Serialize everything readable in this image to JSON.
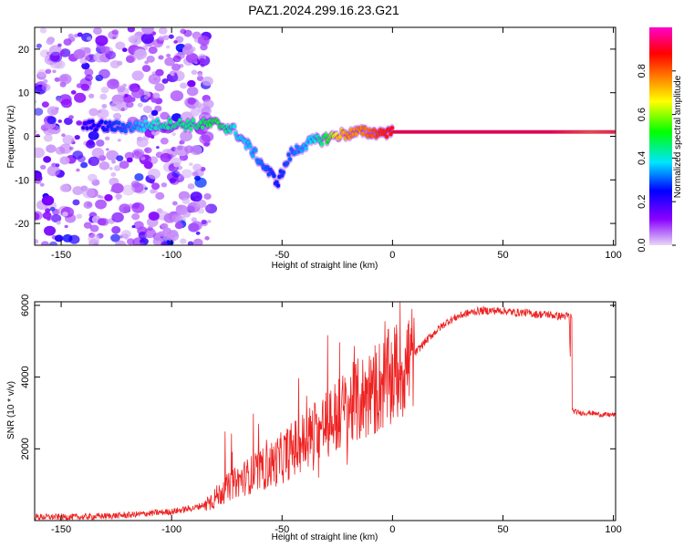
{
  "title": "PAZ1.2024.299.16.23.G21",
  "chart_data": [
    {
      "type": "heatmap",
      "xlabel": "Height of straight line (km)",
      "ylabel": "Frequency (Hz)",
      "xlim": [
        -162,
        101
      ],
      "ylim": [
        -25,
        25
      ],
      "xticks": [
        -150,
        -100,
        -50,
        0,
        50,
        100
      ],
      "yticks": [
        -20,
        -10,
        0,
        10,
        20
      ],
      "colorbar": {
        "label": "Normalized spectral amplitude",
        "range": [
          0,
          1
        ],
        "ticks": [
          0.0,
          0.2,
          0.4,
          0.6,
          0.8
        ],
        "colormap": [
          "#e6d9f5",
          "#8a00ff",
          "#0000ff",
          "#00e5ff",
          "#00ff00",
          "#ffff00",
          "#ff8c00",
          "#ff0000",
          "#ff00cc"
        ]
      },
      "ridge": {
        "x": [
          -140,
          -130,
          -120,
          -110,
          -100,
          -90,
          -80,
          -72,
          -64,
          -58,
          -52,
          -46,
          -40,
          -35,
          -30,
          -25,
          -20,
          -15,
          -10,
          -5,
          0,
          10,
          30,
          50,
          70,
          90,
          101
        ],
        "y": [
          2.5,
          2.3,
          2.1,
          2.5,
          3.0,
          2.6,
          2.9,
          1.5,
          -3.0,
          -7.0,
          -10.5,
          -4.0,
          -2.0,
          -1.0,
          -0.5,
          0.3,
          0.6,
          1.0,
          0.8,
          0.9,
          1.0,
          1.0,
          1.0,
          1.0,
          1.0,
          1.0,
          1.0
        ],
        "amplitude": [
          0.25,
          0.3,
          0.35,
          0.45,
          0.5,
          0.5,
          0.55,
          0.45,
          0.4,
          0.35,
          0.3,
          0.35,
          0.4,
          0.45,
          0.55,
          0.75,
          0.85,
          0.85,
          0.9,
          0.95,
          0.98,
          1.0,
          1.0,
          1.0,
          1.0,
          0.9,
          0.95
        ]
      },
      "noise_region_x": [
        -162,
        -82
      ]
    },
    {
      "type": "line",
      "xlabel": "Height of straight line (km)",
      "ylabel": "SNR (10 * v/v)",
      "xlim": [
        -162,
        101
      ],
      "ylim": [
        0,
        6100
      ],
      "xticks": [
        -150,
        -100,
        -50,
        0,
        50,
        100
      ],
      "yticks": [
        2000,
        4000,
        6000
      ],
      "color": "#ee2222",
      "series": [
        {
          "x": [
            -162,
            -140,
            -120,
            -100,
            -90,
            -85,
            -80,
            -75,
            -70,
            -65,
            -60,
            -55,
            -50,
            -45,
            -40,
            -35,
            -30,
            -25,
            -20,
            -15,
            -10,
            -5,
            0,
            5,
            10,
            15,
            20,
            25,
            30,
            35,
            40,
            45,
            50,
            55,
            60,
            65,
            70,
            75,
            80,
            81,
            82,
            85,
            90,
            95,
            101
          ],
          "y": [
            100,
            100,
            150,
            250,
            350,
            450,
            650,
            900,
            1100,
            1250,
            1400,
            1550,
            1750,
            2000,
            2200,
            2450,
            2700,
            2900,
            3150,
            3350,
            3550,
            3800,
            4000,
            4300,
            4650,
            5000,
            5300,
            5550,
            5700,
            5800,
            5850,
            5850,
            5850,
            5800,
            5800,
            5750,
            5750,
            5700,
            5700,
            3100,
            3050,
            3000,
            3000,
            2950,
            2950
          ]
        }
      ]
    }
  ]
}
